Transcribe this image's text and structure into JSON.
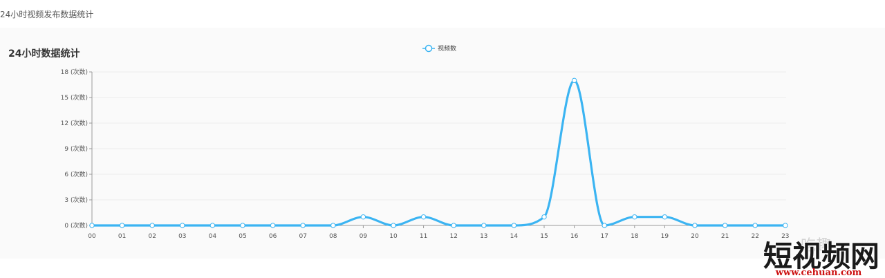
{
  "page": {
    "heading": "24小时视频发布数据统计"
  },
  "panel": {
    "title": "24小时数据统计"
  },
  "watermark": {
    "brand": "短视频网",
    "url": "www.cehuan.com",
    "small": "吃趣"
  },
  "colors": {
    "series": "#3bb4f2",
    "grid": "#ececec",
    "axis": "#999999",
    "panel_bg": "#fafafa"
  },
  "chart_data": {
    "type": "line",
    "smooth": true,
    "categories": [
      "00",
      "01",
      "02",
      "03",
      "04",
      "05",
      "06",
      "07",
      "08",
      "09",
      "10",
      "11",
      "12",
      "13",
      "14",
      "15",
      "16",
      "17",
      "18",
      "19",
      "20",
      "21",
      "22",
      "23"
    ],
    "series": [
      {
        "name": "视频数",
        "values": [
          0,
          0,
          0,
          0,
          0,
          0,
          0,
          0,
          0,
          1,
          0,
          1,
          0,
          0,
          0,
          1,
          17,
          0,
          1,
          1,
          0,
          0,
          0,
          0
        ]
      }
    ],
    "y_ticks": [
      "0 (次数)",
      "3 (次数)",
      "6 (次数)",
      "9 (次数)",
      "12 (次数)",
      "15 (次数)",
      "18 (次数)"
    ],
    "ylim": [
      0,
      18
    ],
    "grid": true,
    "legend_position": "top-center"
  }
}
